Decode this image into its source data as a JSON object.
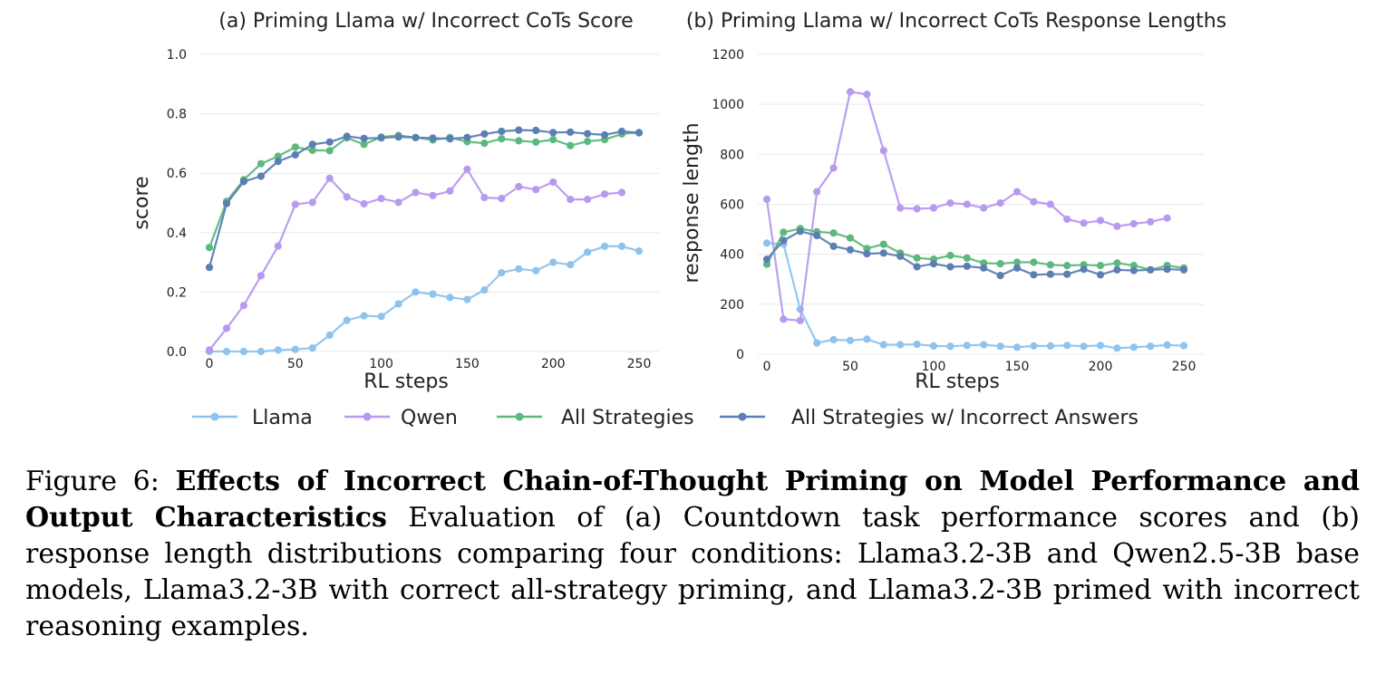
{
  "chart_data": [
    {
      "type": "line",
      "title": "(a) Priming Llama w/ Incorrect CoTs Score",
      "xlabel": "RL steps",
      "ylabel": "score",
      "xlim": [
        0,
        250
      ],
      "ylim": [
        0,
        1.0
      ],
      "xticks": [
        0,
        50,
        100,
        150,
        200,
        250
      ],
      "yticks": [
        "0.0",
        "0.2",
        "0.4",
        "0.6",
        "0.8",
        "1.0"
      ],
      "grid": "horizontal",
      "series": [
        {
          "name": "Llama",
          "color": "#8ec3ee",
          "x": [
            0,
            10,
            20,
            30,
            40,
            50,
            60,
            70,
            80,
            90,
            100,
            110,
            120,
            130,
            140,
            150,
            160,
            170,
            180,
            190,
            200,
            210,
            220,
            230,
            240,
            250
          ],
          "values": [
            0.0,
            0.0,
            0.0,
            0.0,
            0.005,
            0.007,
            0.012,
            0.055,
            0.105,
            0.12,
            0.118,
            0.16,
            0.2,
            0.193,
            0.182,
            0.175,
            0.207,
            0.265,
            0.278,
            0.272,
            0.3,
            0.292,
            0.334,
            0.354,
            0.354,
            0.338
          ]
        },
        {
          "name": "Qwen",
          "color": "#b79af0",
          "x": [
            0,
            10,
            20,
            30,
            40,
            50,
            60,
            70,
            80,
            90,
            100,
            110,
            120,
            130,
            140,
            150,
            160,
            170,
            180,
            190,
            200,
            210,
            220,
            230,
            240
          ],
          "values": [
            0.005,
            0.078,
            0.155,
            0.255,
            0.355,
            0.495,
            0.502,
            0.583,
            0.52,
            0.497,
            0.515,
            0.502,
            0.535,
            0.525,
            0.54,
            0.613,
            0.518,
            0.515,
            0.555,
            0.545,
            0.57,
            0.512,
            0.512,
            0.53,
            0.535
          ]
        },
        {
          "name": "All Strategies",
          "color": "#5db87e",
          "x": [
            0,
            10,
            20,
            30,
            40,
            50,
            60,
            70,
            80,
            90,
            100,
            110,
            120,
            130,
            140,
            150,
            160,
            170,
            180,
            190,
            200,
            210,
            220,
            230,
            240,
            250
          ],
          "values": [
            0.35,
            0.505,
            0.578,
            0.632,
            0.657,
            0.688,
            0.677,
            0.676,
            0.719,
            0.697,
            0.722,
            0.727,
            0.72,
            0.712,
            0.72,
            0.706,
            0.701,
            0.716,
            0.709,
            0.705,
            0.713,
            0.693,
            0.707,
            0.713,
            0.732,
            0.737
          ]
        },
        {
          "name": "All Strategies w/ Incorrect Answers",
          "color": "#5b7fb3",
          "x": [
            0,
            10,
            20,
            30,
            40,
            50,
            60,
            70,
            80,
            90,
            100,
            110,
            120,
            130,
            140,
            150,
            160,
            170,
            180,
            190,
            200,
            210,
            220,
            230,
            240,
            250
          ],
          "values": [
            0.283,
            0.498,
            0.572,
            0.59,
            0.64,
            0.662,
            0.697,
            0.705,
            0.724,
            0.717,
            0.719,
            0.722,
            0.72,
            0.718,
            0.716,
            0.72,
            0.732,
            0.741,
            0.745,
            0.744,
            0.737,
            0.738,
            0.733,
            0.729,
            0.741,
            0.736
          ]
        }
      ]
    },
    {
      "type": "line",
      "title": "(b) Priming Llama w/ Incorrect CoTs Response Lengths",
      "xlabel": "RL steps",
      "ylabel": "response length",
      "xlim": [
        0,
        250
      ],
      "ylim": [
        0,
        1200
      ],
      "xticks": [
        0,
        50,
        100,
        150,
        200,
        250
      ],
      "yticks": [
        "0",
        "200",
        "400",
        "600",
        "800",
        "1000",
        "1200"
      ],
      "grid": "horizontal",
      "series": [
        {
          "name": "Llama",
          "color": "#8ec3ee",
          "x": [
            0,
            10,
            20,
            30,
            40,
            50,
            60,
            70,
            80,
            90,
            100,
            110,
            120,
            130,
            140,
            150,
            160,
            170,
            180,
            190,
            200,
            210,
            220,
            230,
            240,
            250
          ],
          "values": [
            445,
            440,
            180,
            45,
            58,
            55,
            60,
            38,
            38,
            40,
            33,
            32,
            35,
            38,
            32,
            28,
            33,
            33,
            35,
            32,
            35,
            24,
            28,
            32,
            37,
            34
          ]
        },
        {
          "name": "Qwen",
          "color": "#b79af0",
          "x": [
            0,
            10,
            20,
            30,
            40,
            50,
            60,
            70,
            80,
            90,
            100,
            110,
            120,
            130,
            140,
            150,
            160,
            170,
            180,
            190,
            200,
            210,
            220,
            230,
            240
          ],
          "values": [
            620,
            140,
            135,
            650,
            745,
            1050,
            1040,
            815,
            585,
            582,
            585,
            605,
            600,
            585,
            605,
            650,
            610,
            600,
            540,
            525,
            535,
            512,
            522,
            530,
            545
          ]
        },
        {
          "name": "All Strategies",
          "color": "#5db87e",
          "x": [
            0,
            10,
            20,
            30,
            40,
            50,
            60,
            70,
            80,
            90,
            100,
            110,
            120,
            130,
            140,
            150,
            160,
            170,
            180,
            190,
            200,
            210,
            220,
            230,
            240,
            250
          ],
          "values": [
            360,
            488,
            503,
            490,
            485,
            465,
            423,
            440,
            405,
            385,
            380,
            395,
            385,
            365,
            362,
            368,
            368,
            358,
            355,
            358,
            355,
            365,
            355,
            338,
            355,
            345
          ]
        },
        {
          "name": "All Strategies w/ Incorrect Answers",
          "color": "#5b7fb3",
          "x": [
            0,
            10,
            20,
            30,
            40,
            50,
            60,
            70,
            80,
            90,
            100,
            110,
            120,
            130,
            140,
            150,
            160,
            170,
            180,
            190,
            200,
            210,
            220,
            230,
            240,
            250
          ],
          "values": [
            380,
            455,
            492,
            475,
            432,
            418,
            402,
            405,
            392,
            350,
            362,
            350,
            352,
            345,
            315,
            345,
            318,
            320,
            320,
            340,
            318,
            338,
            335,
            338,
            340,
            338
          ]
        }
      ]
    }
  ],
  "legend": {
    "placement": "bottom",
    "entries": [
      {
        "label": "Llama",
        "color": "#8ec3ee"
      },
      {
        "label": "Qwen",
        "color": "#b79af0"
      },
      {
        "label": "All Strategies",
        "color": "#5db87e"
      },
      {
        "label": "All Strategies w/ Incorrect Answers",
        "color": "#5b7fb3"
      }
    ]
  },
  "caption": {
    "prefix": "Figure 6: ",
    "bold": "Effects of Incorrect Chain-of-Thought Priming on Model Performance and Output Characteristics",
    "text": " Evaluation of (a) Countdown task performance scores and (b) response length distributions comparing four conditions: Llama3.2-3B and Qwen2.5-3B base models, Llama3.2-3B with correct all-strategy priming, and Llama3.2-3B primed with incorrect reasoning examples."
  }
}
